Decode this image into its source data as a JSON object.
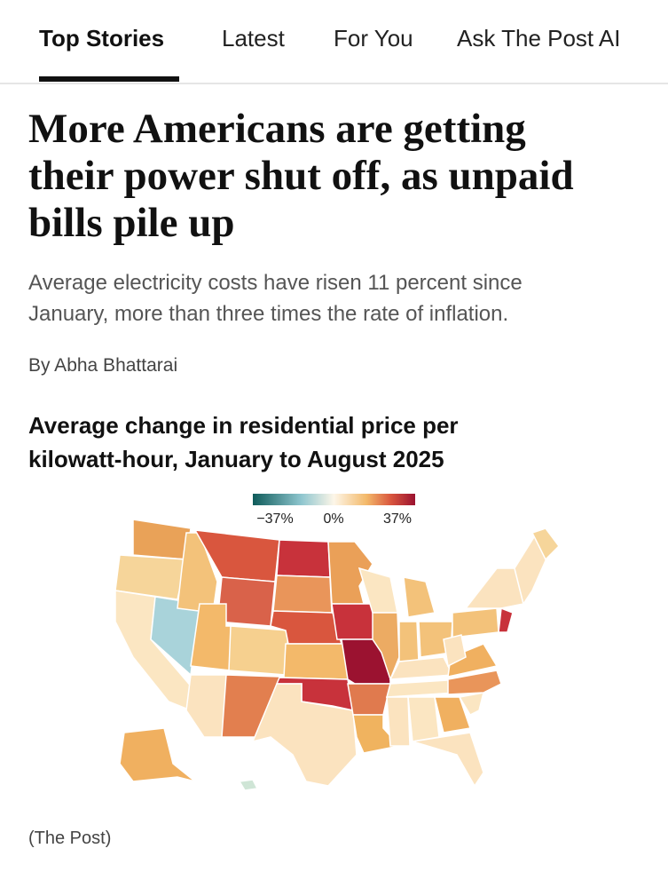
{
  "tabs": [
    "Top Stories",
    "Latest",
    "For You",
    "Ask The Post AI"
  ],
  "article": {
    "headline": [
      "More Americans are getting",
      "their power shut off, as unpaid",
      "bills pile up"
    ],
    "subheadline": [
      "Average electricity costs have risen 11 percent since",
      "January, more than three times the rate of inflation."
    ],
    "byline": "By Abha Bhattarai"
  },
  "figure": {
    "title": [
      "Average change in residential price per",
      "kilowatt-hour, January to August 2025"
    ],
    "legend": [
      "−37%",
      "0%",
      "37%"
    ],
    "credit": "(The Post)"
  }
}
